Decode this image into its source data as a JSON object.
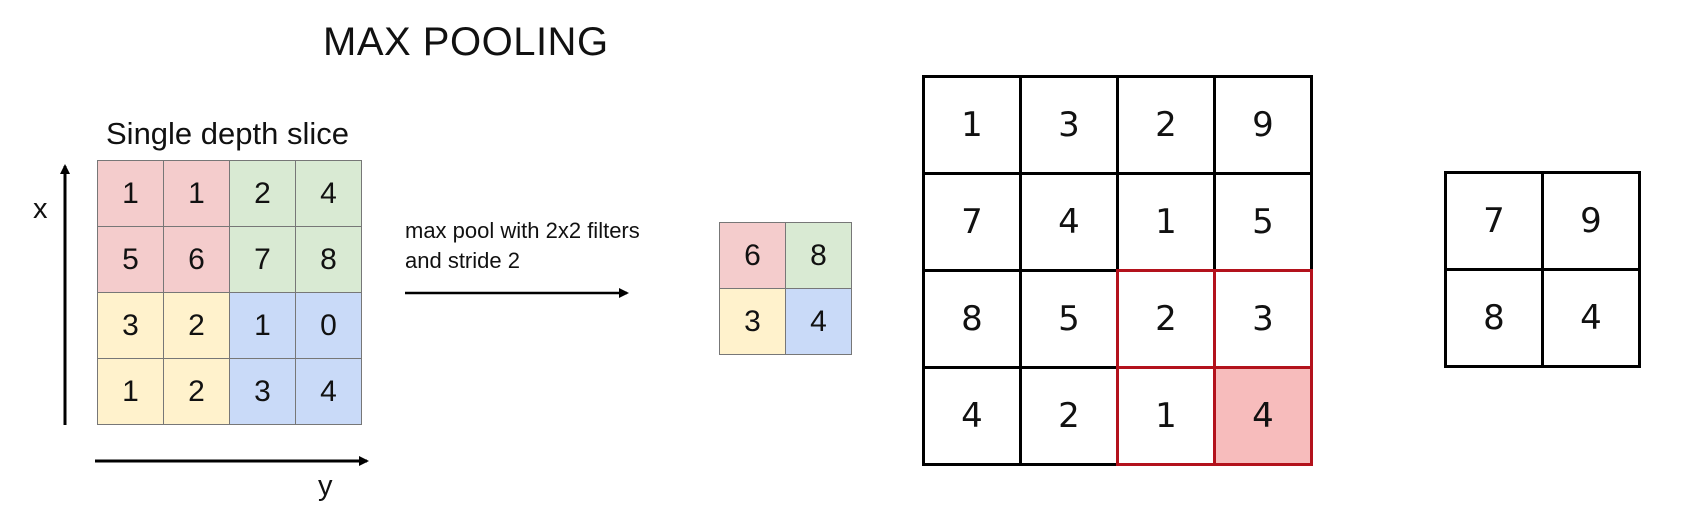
{
  "title": "MAX POOLING",
  "subtitle": "Single depth slice",
  "axis": {
    "x_label": "x",
    "y_label": "y"
  },
  "colors": {
    "red": "#f4cccc",
    "green": "#d9ead3",
    "yellow": "#fff2cc",
    "blue": "#c9daf8",
    "highlight_border": "#b3121c",
    "highlight_fill": "#f7bcbc"
  },
  "input_grid": [
    [
      {
        "v": "1",
        "c": "red"
      },
      {
        "v": "1",
        "c": "red"
      },
      {
        "v": "2",
        "c": "green"
      },
      {
        "v": "4",
        "c": "green"
      }
    ],
    [
      {
        "v": "5",
        "c": "red"
      },
      {
        "v": "6",
        "c": "red"
      },
      {
        "v": "7",
        "c": "green"
      },
      {
        "v": "8",
        "c": "green"
      }
    ],
    [
      {
        "v": "3",
        "c": "yellow"
      },
      {
        "v": "2",
        "c": "yellow"
      },
      {
        "v": "1",
        "c": "blue"
      },
      {
        "v": "0",
        "c": "blue"
      }
    ],
    [
      {
        "v": "1",
        "c": "yellow"
      },
      {
        "v": "2",
        "c": "yellow"
      },
      {
        "v": "3",
        "c": "blue"
      },
      {
        "v": "4",
        "c": "blue"
      }
    ]
  ],
  "operation": {
    "line1": "max pool with 2x2 filters",
    "line2": "and stride 2"
  },
  "output_grid": [
    [
      {
        "v": "6",
        "c": "red"
      },
      {
        "v": "8",
        "c": "green"
      }
    ],
    [
      {
        "v": "3",
        "c": "yellow"
      },
      {
        "v": "4",
        "c": "blue"
      }
    ]
  ],
  "example_grid": [
    [
      "1",
      "3",
      "2",
      "9"
    ],
    [
      "7",
      "4",
      "1",
      "5"
    ],
    [
      "8",
      "5",
      "2",
      "3"
    ],
    [
      "4",
      "2",
      "1",
      "4"
    ]
  ],
  "example_highlight": {
    "window_rows": [
      2,
      3
    ],
    "window_cols": [
      2,
      3
    ],
    "max_cell": [
      3,
      3
    ]
  },
  "result_grid": [
    [
      "7",
      "9"
    ],
    [
      "8",
      "4"
    ]
  ]
}
